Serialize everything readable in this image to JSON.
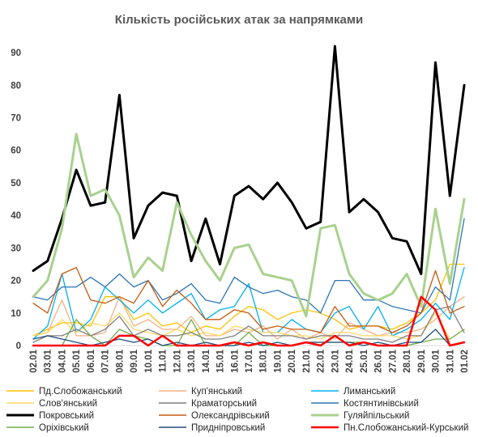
{
  "chart_data": {
    "type": "line",
    "title": "Кількість російських атак за напрямками",
    "xlabel": "",
    "ylabel": "",
    "ylim": [
      0,
      95
    ],
    "yticks": [
      0,
      10,
      20,
      30,
      40,
      50,
      60,
      70,
      80,
      90
    ],
    "grid": false,
    "legend_position": "bottom",
    "x": [
      "02.01",
      "03.01",
      "04.01",
      "05.01",
      "06.01",
      "07.01",
      "08.01",
      "09.01",
      "10.01",
      "11.01",
      "12.01",
      "13.01",
      "14.01",
      "15.01",
      "16.01",
      "17.01",
      "18.01",
      "19.01",
      "20.01",
      "21.01",
      "22.01",
      "23.01",
      "24.01",
      "25.01",
      "26.01",
      "27.01",
      "28.01",
      "29.01",
      "30.01",
      "31.01",
      "01.02"
    ],
    "x_ticks_labeled": [
      "02.01",
      "03.01",
      "04.01",
      "05.01",
      "06.01",
      "07.01",
      "08.01",
      "09.01",
      "10.01",
      "11.01",
      "12.01",
      "13.01",
      "14.01",
      "15.01",
      "16.01",
      "17.01",
      "18.01",
      "19.01",
      "20.01",
      "21.01",
      "22.01",
      "23.01",
      "24.01",
      "25.01",
      "26.01",
      "27.01",
      "28.01",
      "29.01",
      "30.01",
      "31.01",
      "01.02"
    ],
    "series": [
      {
        "name": "Пд.Слобожанський",
        "color": "#FFC000",
        "width": 1.3,
        "values": [
          3,
          5,
          7,
          7,
          6,
          15,
          15,
          8,
          10,
          6,
          7,
          4,
          6,
          5,
          9,
          12,
          11,
          8,
          10,
          11,
          10,
          8,
          5,
          6,
          6,
          5,
          7,
          10,
          14,
          25,
          25
        ]
      },
      {
        "name": "Куп'янський",
        "color": "#F4B183",
        "width": 1.3,
        "values": [
          3,
          4,
          14,
          3,
          3,
          4,
          15,
          6,
          8,
          5,
          5,
          9,
          3,
          3,
          5,
          4,
          6,
          2,
          5,
          2,
          4,
          2,
          7,
          5,
          3,
          4,
          4,
          5,
          8,
          12,
          15
        ]
      },
      {
        "name": "Лиманський",
        "color": "#00B0F0",
        "width": 1.3,
        "values": [
          2,
          6,
          22,
          4,
          8,
          18,
          14,
          10,
          14,
          10,
          13,
          16,
          8,
          11,
          12,
          19,
          4,
          4,
          8,
          5,
          4,
          10,
          12,
          5,
          12,
          3,
          5,
          8,
          13,
          8,
          24
        ]
      },
      {
        "name": "Слов'янський",
        "color": "#FFD966",
        "width": 1.3,
        "values": [
          3,
          4,
          8,
          4,
          7,
          6,
          10,
          5,
          4,
          3,
          5,
          3,
          4,
          3,
          6,
          5,
          4,
          4,
          3,
          3,
          2,
          4,
          4,
          3,
          3,
          3,
          2,
          3,
          10,
          2,
          5
        ]
      },
      {
        "name": "Краматорський",
        "color": "#7F7F7F",
        "width": 1.3,
        "values": [
          1,
          3,
          3,
          5,
          3,
          5,
          9,
          3,
          5,
          3,
          3,
          4,
          2,
          2,
          3,
          6,
          3,
          3,
          3,
          2,
          3,
          3,
          3,
          2,
          2,
          1,
          3,
          3,
          11,
          12,
          4
        ]
      },
      {
        "name": "Костянтинівський",
        "color": "#2E75B6",
        "width": 1.3,
        "values": [
          15,
          14,
          18,
          18,
          21,
          18,
          22,
          18,
          20,
          14,
          16,
          19,
          14,
          13,
          21,
          18,
          16,
          17,
          15,
          14,
          10,
          20,
          20,
          14,
          14,
          12,
          11,
          10,
          18,
          14,
          39
        ]
      },
      {
        "name": "Покровський",
        "color": "#000000",
        "width": 3,
        "values": [
          23,
          26,
          39,
          54,
          43,
          44,
          77,
          33,
          43,
          47,
          46,
          26,
          39,
          25,
          46,
          49,
          45,
          50,
          44,
          36,
          38,
          92,
          41,
          45,
          41,
          33,
          32,
          22,
          87,
          46,
          80
        ]
      },
      {
        "name": "Олександрівський",
        "color": "#C55A11",
        "width": 1.3,
        "values": [
          13,
          10,
          22,
          24,
          14,
          13,
          15,
          13,
          20,
          12,
          17,
          13,
          8,
          8,
          11,
          10,
          5,
          6,
          5,
          5,
          4,
          12,
          6,
          6,
          6,
          4,
          6,
          10,
          23,
          10,
          12
        ]
      },
      {
        "name": "Гуляйпільський",
        "color": "#A9D18E",
        "width": 3,
        "values": [
          15,
          20,
          36,
          65,
          46,
          48,
          40,
          21,
          27,
          23,
          44,
          34,
          26,
          20,
          30,
          31,
          22,
          21,
          20,
          9,
          36,
          37,
          22,
          16,
          14,
          16,
          22,
          12,
          42,
          19,
          45
        ]
      },
      {
        "name": "Оріхівський",
        "color": "#70AD47",
        "width": 1.3,
        "values": [
          0,
          0,
          0,
          8,
          3,
          0,
          5,
          3,
          2,
          0,
          0,
          8,
          0,
          0,
          0,
          4,
          0,
          0,
          0,
          1,
          1,
          1,
          1,
          1,
          0,
          0,
          0,
          1,
          2,
          2,
          5
        ]
      },
      {
        "name": "Придніпровський",
        "color": "#1F4E79",
        "width": 1.3,
        "values": [
          2,
          3,
          2,
          1,
          0,
          1,
          2,
          1,
          2,
          0,
          1,
          0,
          1,
          0,
          0,
          1,
          0,
          1,
          0,
          1,
          1,
          1,
          1,
          0,
          1,
          0,
          1,
          1,
          5,
          0,
          1
        ]
      },
      {
        "name": "Пн.Слобожанський-Курський",
        "color": "#FF0000",
        "width": 2.5,
        "values": [
          0,
          0,
          0,
          0,
          0,
          0,
          3,
          3,
          0,
          3,
          0,
          0,
          0,
          0,
          1,
          0,
          1,
          0,
          0,
          1,
          0,
          3,
          0,
          1,
          0,
          0,
          0,
          15,
          11,
          0,
          1
        ]
      }
    ]
  }
}
